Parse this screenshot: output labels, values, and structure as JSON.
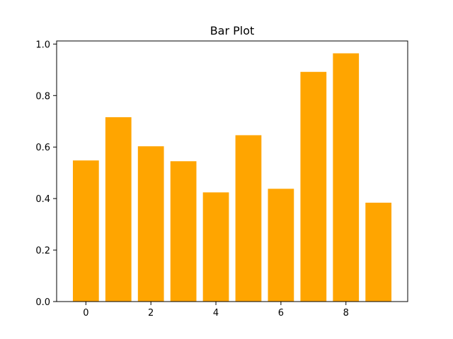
{
  "chart_data": {
    "type": "bar",
    "title": "Bar Plot",
    "xlabel": "",
    "ylabel": "",
    "categories": [
      0,
      1,
      2,
      3,
      4,
      5,
      6,
      7,
      8,
      9
    ],
    "values": [
      0.548,
      0.716,
      0.603,
      0.545,
      0.424,
      0.646,
      0.438,
      0.892,
      0.964,
      0.384
    ],
    "bar_color": "#ffa500",
    "xlim": [
      -0.9,
      9.9
    ],
    "ylim": [
      0,
      1.012
    ],
    "xticks": [
      0,
      2,
      4,
      6,
      8
    ],
    "xtick_labels": [
      "0",
      "2",
      "4",
      "6",
      "8"
    ],
    "yticks": [
      0,
      0.2,
      0.4,
      0.6,
      0.8,
      1.0
    ],
    "ytick_labels": [
      "0.0",
      "0.2",
      "0.4",
      "0.6",
      "0.8",
      "1.0"
    ],
    "grid": false,
    "legend": false
  }
}
